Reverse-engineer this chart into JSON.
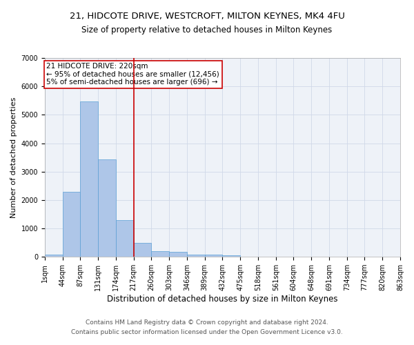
{
  "title1": "21, HIDCOTE DRIVE, WESTCROFT, MILTON KEYNES, MK4 4FU",
  "title2": "Size of property relative to detached houses in Milton Keynes",
  "xlabel": "Distribution of detached houses by size in Milton Keynes",
  "ylabel": "Number of detached properties",
  "footer1": "Contains HM Land Registry data © Crown copyright and database right 2024.",
  "footer2": "Contains public sector information licensed under the Open Government Licence v3.0.",
  "annotation_line1": "21 HIDCOTE DRIVE: 220sqm",
  "annotation_line2": "← 95% of detached houses are smaller (12,456)",
  "annotation_line3": "5% of semi-detached houses are larger (696) →",
  "bar_values": [
    80,
    2280,
    5480,
    3420,
    1300,
    500,
    190,
    180,
    90,
    70,
    55,
    0,
    0,
    0,
    0,
    0,
    0,
    0,
    0,
    0
  ],
  "x_labels": [
    "1sqm",
    "44sqm",
    "87sqm",
    "131sqm",
    "174sqm",
    "217sqm",
    "260sqm",
    "303sqm",
    "346sqm",
    "389sqm",
    "432sqm",
    "475sqm",
    "518sqm",
    "561sqm",
    "604sqm",
    "648sqm",
    "691sqm",
    "734sqm",
    "777sqm",
    "820sqm",
    "863sqm"
  ],
  "bar_color": "#aec6e8",
  "bar_edge_color": "#5a9fd4",
  "vline_color": "#cc0000",
  "annotation_box_color": "#cc0000",
  "ylim": [
    0,
    7000
  ],
  "yticks": [
    0,
    1000,
    2000,
    3000,
    4000,
    5000,
    6000,
    7000
  ],
  "grid_color": "#d0d8e8",
  "bg_color": "#eef2f8",
  "title1_fontsize": 9.5,
  "title2_fontsize": 8.5,
  "xlabel_fontsize": 8.5,
  "ylabel_fontsize": 8,
  "tick_fontsize": 7,
  "footer_fontsize": 6.5,
  "annotation_fontsize": 7.5
}
